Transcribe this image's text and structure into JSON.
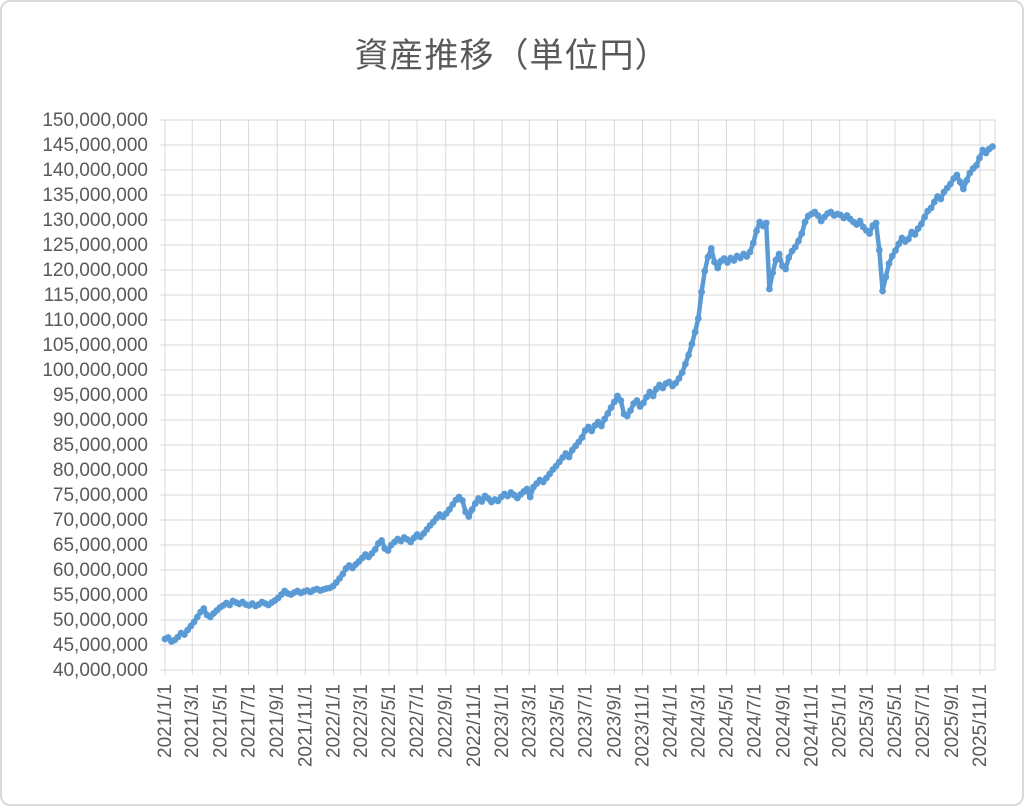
{
  "chart_title": "資産推移（単位円）",
  "colors": {
    "series_line": "#5B9BD5",
    "gridline": "#D9D9D9",
    "axis_text": "#595959",
    "title_text": "#595959",
    "background": "#FFFFFF",
    "frame_border": "#D9D9D9"
  },
  "chart_data": {
    "type": "line",
    "title": "資産推移（単位円）",
    "unit": "円",
    "legend": "none",
    "grid": true,
    "marker": "circle",
    "y_axis": {
      "min": 40000000,
      "max": 150000000,
      "step": 5000000,
      "tick_labels": [
        "150,000,000",
        "145,000,000",
        "140,000,000",
        "135,000,000",
        "130,000,000",
        "125,000,000",
        "120,000,000",
        "115,000,000",
        "110,000,000",
        "105,000,000",
        "100,000,000",
        "95,000,000",
        "90,000,000",
        "85,000,000",
        "80,000,000",
        "75,000,000",
        "70,000,000",
        "65,000,000",
        "60,000,000",
        "55,000,000",
        "50,000,000",
        "45,000,000",
        "40,000,000"
      ]
    },
    "x_axis": {
      "tick_labels": [
        "2021/1/1",
        "2021/3/1",
        "2021/5/1",
        "2021/7/1",
        "2021/9/1",
        "2021/11/1",
        "2022/1/1",
        "2022/3/1",
        "2022/5/1",
        "2022/7/1",
        "2022/9/1",
        "2022/11/1",
        "2023/1/1",
        "2023/3/1",
        "2023/5/1",
        "2023/7/1",
        "2023/9/1",
        "2023/11/1",
        "2024/1/1",
        "2024/3/1",
        "2024/5/1",
        "2024/7/1",
        "2024/9/1",
        "2024/11/1",
        "2025/1/1",
        "2025/3/1",
        "2025/5/1",
        "2025/7/1",
        "2025/9/1",
        "2025/11/1"
      ]
    },
    "series": [
      {
        "name": "資産",
        "start_date": "2021/1/1",
        "interval_days": 7,
        "unit_multiplier": 1000000,
        "values_million_yen": [
          46.2,
          46.5,
          45.7,
          46.0,
          46.6,
          47.4,
          47.1,
          48.0,
          48.8,
          49.6,
          50.6,
          51.6,
          52.3,
          51.0,
          50.6,
          51.3,
          51.9,
          52.5,
          52.9,
          53.4,
          53.0,
          53.8,
          53.5,
          53.2,
          53.6,
          53.1,
          52.9,
          53.3,
          52.8,
          53.1,
          53.6,
          53.3,
          53.0,
          53.5,
          53.9,
          54.4,
          55.1,
          55.8,
          55.3,
          55.1,
          55.5,
          55.8,
          55.4,
          55.7,
          55.9,
          55.6,
          56.0,
          56.2,
          55.9,
          56.1,
          56.3,
          56.4,
          56.8,
          57.5,
          58.3,
          59.2,
          60.3,
          60.9,
          60.4,
          61.1,
          61.7,
          62.4,
          63.1,
          62.6,
          63.3,
          64.1,
          65.3,
          65.9,
          64.3,
          63.9,
          65.0,
          65.6,
          66.2,
          65.8,
          66.5,
          66.1,
          65.6,
          66.4,
          67.1,
          66.6,
          67.3,
          68.1,
          68.9,
          69.6,
          70.4,
          71.1,
          70.6,
          71.3,
          72.1,
          73.1,
          74.0,
          74.6,
          73.9,
          71.6,
          70.7,
          72.1,
          73.3,
          74.3,
          73.7,
          74.8,
          74.3,
          73.6,
          74.1,
          73.8,
          74.6,
          75.2,
          74.8,
          75.5,
          75.0,
          74.4,
          75.1,
          75.7,
          76.2,
          74.6,
          76.6,
          77.3,
          78.0,
          77.6,
          78.4,
          79.2,
          80.1,
          80.8,
          81.6,
          82.5,
          83.3,
          82.6,
          84.0,
          84.8,
          85.6,
          86.5,
          87.9,
          88.6,
          87.8,
          88.9,
          89.6,
          88.8,
          90.2,
          91.3,
          92.5,
          93.6,
          94.8,
          93.9,
          91.2,
          90.8,
          91.9,
          93.3,
          93.9,
          92.7,
          93.4,
          94.6,
          95.6,
          94.8,
          96.2,
          97.0,
          96.4,
          97.3,
          97.6,
          96.8,
          97.4,
          98.3,
          99.5,
          101.2,
          103.0,
          105.2,
          107.6,
          110.3,
          115.6,
          119.8,
          122.6,
          124.3,
          121.6,
          120.4,
          121.8,
          122.3,
          121.5,
          122.4,
          121.9,
          122.8,
          122.4,
          123.2,
          122.7,
          123.6,
          125.4,
          127.8,
          129.6,
          128.8,
          129.4,
          116.2,
          119.5,
          122.0,
          123.2,
          120.8,
          120.2,
          122.5,
          123.8,
          124.6,
          125.8,
          127.3,
          129.6,
          130.8,
          131.2,
          131.6,
          130.9,
          129.8,
          130.6,
          131.3,
          131.6,
          130.9,
          131.2,
          131.0,
          130.4,
          130.9,
          130.2,
          129.6,
          129.1,
          129.8,
          128.6,
          127.9,
          127.3,
          128.9,
          129.4,
          124.0,
          115.8,
          118.6,
          121.3,
          122.8,
          123.9,
          125.2,
          126.4,
          125.7,
          126.2,
          127.6,
          127.1,
          128.3,
          129.2,
          130.6,
          131.8,
          132.4,
          133.6,
          134.7,
          134.2,
          135.6,
          136.4,
          137.2,
          138.3,
          139.0,
          137.6,
          136.2,
          137.9,
          139.4,
          140.3,
          140.9,
          142.4,
          144.0,
          143.4,
          144.2,
          144.7
        ]
      }
    ]
  }
}
